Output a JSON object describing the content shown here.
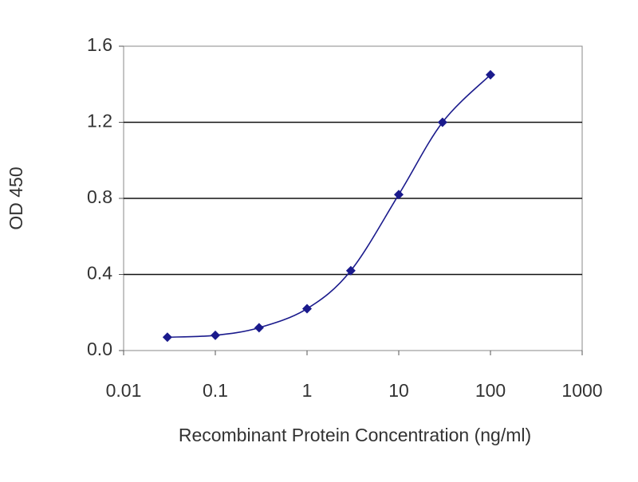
{
  "chart_data": {
    "type": "line",
    "xlabel": "Recombinant Protein Concentration (ng/ml)",
    "ylabel": "OD 450",
    "xscale": "log",
    "x": [
      0.03,
      0.1,
      0.3,
      1,
      3,
      10,
      30,
      100
    ],
    "series": [
      {
        "color": "#1a1a8c",
        "values": [
          0.07,
          0.08,
          0.12,
          0.22,
          0.42,
          0.82,
          1.2,
          1.45
        ]
      }
    ],
    "xlim": [
      0.01,
      1000
    ],
    "xticks": [
      0.01,
      0.1,
      1,
      10,
      100,
      1000
    ],
    "ylim": [
      0,
      1.6
    ],
    "yticks": [
      {
        "value": 0,
        "label": "0.0"
      },
      0.4,
      0.8,
      1.2,
      1.6
    ],
    "grid": true
  }
}
